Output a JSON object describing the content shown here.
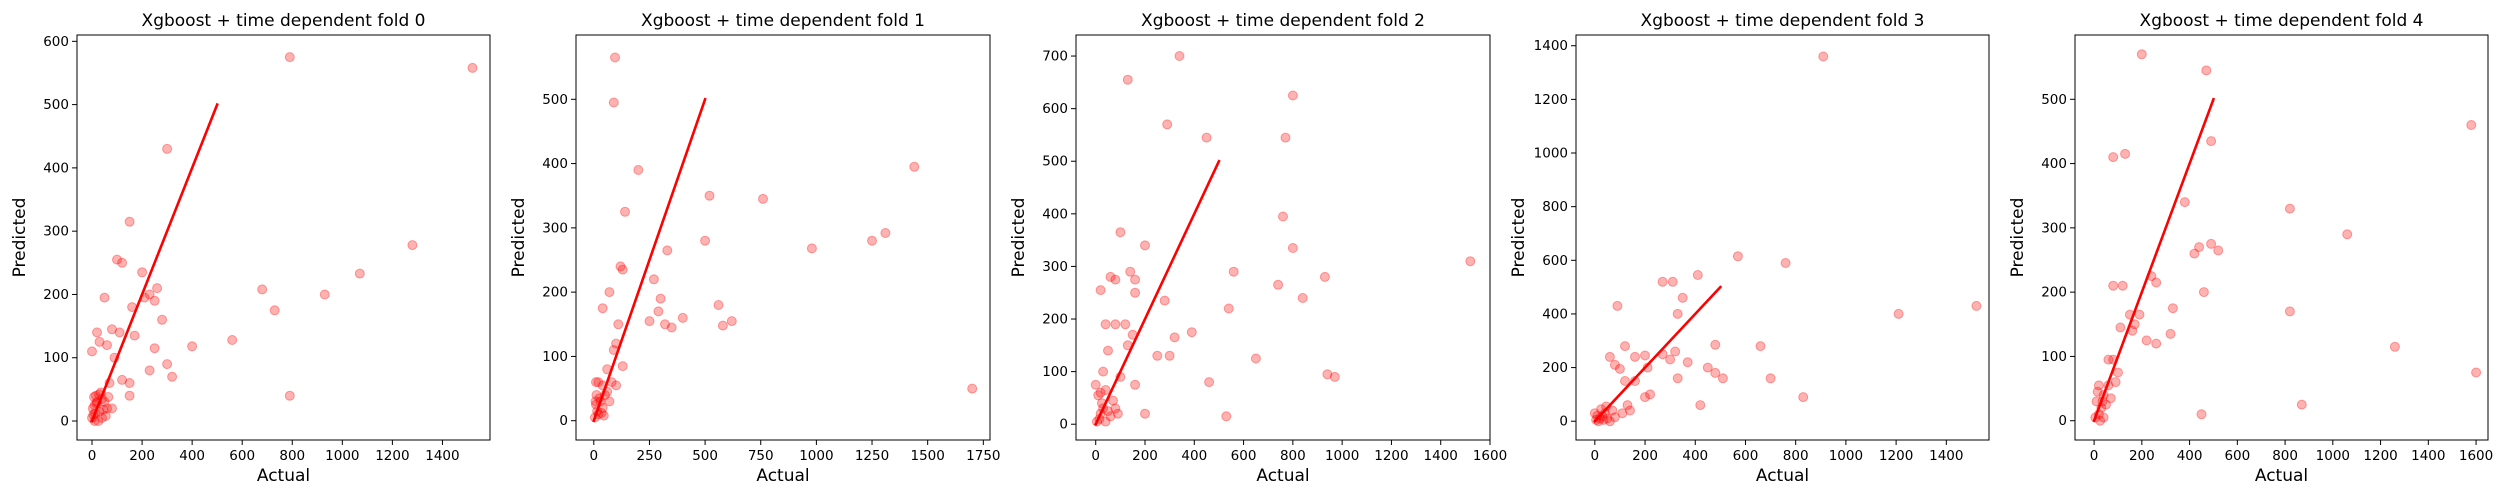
{
  "figure": {
    "marker_color": "#ff0000",
    "marker_alpha": 0.3,
    "line_color": "#ff0000"
  },
  "chart_data": [
    {
      "type": "scatter",
      "title": "Xgboost + time dependent fold 0",
      "xlabel": "Actual",
      "ylabel": "Predicted",
      "xlim": [
        -60,
        1590
      ],
      "ylim": [
        -30,
        610
      ],
      "xticks": [
        0,
        200,
        400,
        600,
        800,
        1000,
        1200,
        1400
      ],
      "yticks": [
        0,
        100,
        200,
        300,
        400,
        500,
        600
      ],
      "reference_line": {
        "x": [
          0,
          500
        ],
        "y": [
          0,
          500
        ]
      },
      "points": [
        [
          790,
          575
        ],
        [
          1520,
          558
        ],
        [
          300,
          430
        ],
        [
          150,
          315
        ],
        [
          100,
          255
        ],
        [
          120,
          250
        ],
        [
          200,
          235
        ],
        [
          230,
          200
        ],
        [
          250,
          190
        ],
        [
          210,
          195
        ],
        [
          260,
          210
        ],
        [
          680,
          208
        ],
        [
          930,
          200
        ],
        [
          1070,
          233
        ],
        [
          1280,
          278
        ],
        [
          730,
          175
        ],
        [
          50,
          195
        ],
        [
          160,
          180
        ],
        [
          20,
          140
        ],
        [
          80,
          145
        ],
        [
          110,
          140
        ],
        [
          170,
          135
        ],
        [
          250,
          115
        ],
        [
          400,
          118
        ],
        [
          560,
          128
        ],
        [
          280,
          160
        ],
        [
          300,
          90
        ],
        [
          320,
          70
        ],
        [
          230,
          80
        ],
        [
          150,
          60
        ],
        [
          120,
          65
        ],
        [
          90,
          100
        ],
        [
          60,
          120
        ],
        [
          30,
          125
        ],
        [
          0,
          110
        ],
        [
          790,
          40
        ],
        [
          150,
          40
        ],
        [
          70,
          60
        ],
        [
          80,
          20
        ],
        [
          20,
          30
        ],
        [
          10,
          25
        ],
        [
          5,
          10
        ],
        [
          30,
          15
        ],
        [
          15,
          40
        ],
        [
          40,
          35
        ],
        [
          0,
          5
        ],
        [
          25,
          0
        ],
        [
          50,
          30
        ],
        [
          60,
          20
        ],
        [
          45,
          18
        ],
        [
          12,
          12
        ],
        [
          8,
          38
        ],
        [
          35,
          45
        ],
        [
          18,
          28
        ],
        [
          3,
          20
        ],
        [
          55,
          8
        ],
        [
          28,
          42
        ],
        [
          65,
          38
        ],
        [
          40,
          5
        ],
        [
          10,
          0
        ]
      ]
    },
    {
      "type": "scatter",
      "title": "Xgboost + time dependent fold 1",
      "xlabel": "Actual",
      "ylabel": "Predicted",
      "xlim": [
        -80,
        1780
      ],
      "ylim": [
        -30,
        600
      ],
      "xticks": [
        0,
        250,
        500,
        750,
        1000,
        1250,
        1500,
        1750
      ],
      "yticks": [
        0,
        100,
        200,
        300,
        400,
        500
      ],
      "reference_line": {
        "x": [
          0,
          500
        ],
        "y": [
          0,
          500
        ]
      },
      "points": [
        [
          95,
          565
        ],
        [
          90,
          495
        ],
        [
          200,
          390
        ],
        [
          1440,
          395
        ],
        [
          140,
          325
        ],
        [
          520,
          350
        ],
        [
          760,
          345
        ],
        [
          330,
          265
        ],
        [
          500,
          280
        ],
        [
          980,
          268
        ],
        [
          1250,
          280
        ],
        [
          1310,
          292
        ],
        [
          40,
          175
        ],
        [
          70,
          200
        ],
        [
          130,
          235
        ],
        [
          120,
          240
        ],
        [
          270,
          220
        ],
        [
          300,
          190
        ],
        [
          290,
          170
        ],
        [
          560,
          180
        ],
        [
          400,
          160
        ],
        [
          350,
          145
        ],
        [
          320,
          150
        ],
        [
          620,
          155
        ],
        [
          580,
          148
        ],
        [
          250,
          155
        ],
        [
          110,
          150
        ],
        [
          100,
          120
        ],
        [
          90,
          110
        ],
        [
          130,
          85
        ],
        [
          60,
          80
        ],
        [
          10,
          60
        ],
        [
          20,
          60
        ],
        [
          40,
          55
        ],
        [
          80,
          60
        ],
        [
          100,
          55
        ],
        [
          50,
          40
        ],
        [
          30,
          30
        ],
        [
          70,
          30
        ],
        [
          40,
          20
        ],
        [
          10,
          25
        ],
        [
          20,
          10
        ],
        [
          5,
          5
        ],
        [
          25,
          35
        ],
        [
          15,
          15
        ],
        [
          35,
          12
        ],
        [
          60,
          45
        ],
        [
          12,
          40
        ],
        [
          45,
          8
        ],
        [
          1700,
          50
        ],
        [
          8,
          30
        ]
      ]
    },
    {
      "type": "scatter",
      "title": "Xgboost + time dependent fold 2",
      "xlabel": "Actual",
      "ylabel": "Predicted",
      "xlim": [
        -80,
        1600
      ],
      "ylim": [
        -30,
        740
      ],
      "xticks": [
        0,
        200,
        400,
        600,
        800,
        1000,
        1200,
        1400,
        1600
      ],
      "yticks": [
        0,
        100,
        200,
        300,
        400,
        500,
        600,
        700
      ],
      "reference_line": {
        "x": [
          0,
          500
        ],
        "y": [
          0,
          500
        ]
      },
      "points": [
        [
          340,
          700
        ],
        [
          130,
          655
        ],
        [
          800,
          625
        ],
        [
          290,
          570
        ],
        [
          450,
          545
        ],
        [
          770,
          545
        ],
        [
          760,
          395
        ],
        [
          100,
          365
        ],
        [
          800,
          335
        ],
        [
          200,
          340
        ],
        [
          140,
          290
        ],
        [
          560,
          290
        ],
        [
          60,
          280
        ],
        [
          80,
          275
        ],
        [
          160,
          275
        ],
        [
          740,
          265
        ],
        [
          1520,
          310
        ],
        [
          160,
          250
        ],
        [
          20,
          255
        ],
        [
          280,
          235
        ],
        [
          540,
          220
        ],
        [
          840,
          240
        ],
        [
          930,
          280
        ],
        [
          40,
          190
        ],
        [
          80,
          190
        ],
        [
          120,
          190
        ],
        [
          390,
          175
        ],
        [
          150,
          170
        ],
        [
          320,
          165
        ],
        [
          250,
          130
        ],
        [
          300,
          130
        ],
        [
          650,
          125
        ],
        [
          130,
          150
        ],
        [
          50,
          140
        ],
        [
          100,
          90
        ],
        [
          160,
          75
        ],
        [
          30,
          100
        ],
        [
          460,
          80
        ],
        [
          0,
          75
        ],
        [
          20,
          60
        ],
        [
          40,
          65
        ],
        [
          10,
          55
        ],
        [
          200,
          20
        ],
        [
          530,
          15
        ],
        [
          940,
          95
        ],
        [
          970,
          90
        ],
        [
          70,
          45
        ],
        [
          30,
          30
        ],
        [
          50,
          25
        ],
        [
          60,
          15
        ],
        [
          15,
          10
        ],
        [
          20,
          20
        ],
        [
          40,
          5
        ],
        [
          5,
          5
        ],
        [
          25,
          40
        ],
        [
          80,
          30
        ],
        [
          90,
          20
        ]
      ]
    },
    {
      "type": "scatter",
      "title": "Xgboost + time dependent fold 3",
      "xlabel": "Actual",
      "ylabel": "Predicted",
      "xlim": [
        -75,
        1570
      ],
      "ylim": [
        -70,
        1440
      ],
      "xticks": [
        0,
        200,
        400,
        600,
        800,
        1000,
        1200,
        1400
      ],
      "yticks": [
        0,
        200,
        400,
        600,
        800,
        1000,
        1200,
        1400
      ],
      "reference_line": {
        "x": [
          0,
          500
        ],
        "y": [
          0,
          500
        ]
      },
      "points": [
        [
          910,
          1360
        ],
        [
          570,
          615
        ],
        [
          760,
          590
        ],
        [
          410,
          545
        ],
        [
          270,
          520
        ],
        [
          310,
          520
        ],
        [
          1210,
          400
        ],
        [
          1520,
          430
        ],
        [
          90,
          430
        ],
        [
          350,
          460
        ],
        [
          330,
          400
        ],
        [
          480,
          285
        ],
        [
          270,
          250
        ],
        [
          320,
          260
        ],
        [
          660,
          280
        ],
        [
          200,
          245
        ],
        [
          120,
          280
        ],
        [
          160,
          240
        ],
        [
          60,
          240
        ],
        [
          80,
          210
        ],
        [
          120,
          150
        ],
        [
          100,
          195
        ],
        [
          160,
          150
        ],
        [
          210,
          200
        ],
        [
          200,
          90
        ],
        [
          220,
          100
        ],
        [
          300,
          230
        ],
        [
          370,
          220
        ],
        [
          450,
          200
        ],
        [
          480,
          180
        ],
        [
          510,
          160
        ],
        [
          700,
          160
        ],
        [
          830,
          90
        ],
        [
          420,
          60
        ],
        [
          330,
          160
        ],
        [
          130,
          60
        ],
        [
          140,
          40
        ],
        [
          110,
          30
        ],
        [
          70,
          40
        ],
        [
          40,
          30
        ],
        [
          30,
          20
        ],
        [
          20,
          10
        ],
        [
          10,
          20
        ],
        [
          5,
          5
        ],
        [
          50,
          10
        ],
        [
          60,
          0
        ],
        [
          80,
          15
        ],
        [
          0,
          30
        ],
        [
          25,
          45
        ],
        [
          45,
          55
        ],
        [
          15,
          0
        ],
        [
          35,
          5
        ]
      ]
    },
    {
      "type": "scatter",
      "title": "Xgboost + time dependent fold 4",
      "xlabel": "Actual",
      "ylabel": "Predicted",
      "xlim": [
        -80,
        1650
      ],
      "ylim": [
        -30,
        600
      ],
      "xticks": [
        0,
        200,
        400,
        600,
        800,
        1000,
        1200,
        1400,
        1600
      ],
      "yticks": [
        0,
        100,
        200,
        300,
        400,
        500
      ],
      "reference_line": {
        "x": [
          0,
          500
        ],
        "y": [
          0,
          500
        ]
      },
      "points": [
        [
          200,
          570
        ],
        [
          470,
          545
        ],
        [
          1580,
          460
        ],
        [
          490,
          435
        ],
        [
          130,
          415
        ],
        [
          80,
          410
        ],
        [
          380,
          340
        ],
        [
          820,
          330
        ],
        [
          490,
          275
        ],
        [
          520,
          265
        ],
        [
          440,
          270
        ],
        [
          420,
          260
        ],
        [
          1060,
          290
        ],
        [
          240,
          225
        ],
        [
          260,
          215
        ],
        [
          120,
          210
        ],
        [
          80,
          210
        ],
        [
          330,
          175
        ],
        [
          190,
          165
        ],
        [
          150,
          165
        ],
        [
          170,
          150
        ],
        [
          160,
          140
        ],
        [
          110,
          145
        ],
        [
          220,
          125
        ],
        [
          260,
          120
        ],
        [
          320,
          135
        ],
        [
          460,
          200
        ],
        [
          820,
          170
        ],
        [
          1260,
          115
        ],
        [
          1600,
          75
        ],
        [
          60,
          95
        ],
        [
          80,
          95
        ],
        [
          100,
          75
        ],
        [
          60,
          55
        ],
        [
          20,
          55
        ],
        [
          40,
          40
        ],
        [
          10,
          30
        ],
        [
          30,
          20
        ],
        [
          20,
          10
        ],
        [
          5,
          5
        ],
        [
          40,
          5
        ],
        [
          50,
          25
        ],
        [
          70,
          35
        ],
        [
          450,
          10
        ],
        [
          870,
          25
        ],
        [
          15,
          45
        ],
        [
          35,
          30
        ],
        [
          25,
          0
        ],
        [
          90,
          60
        ]
      ]
    }
  ]
}
